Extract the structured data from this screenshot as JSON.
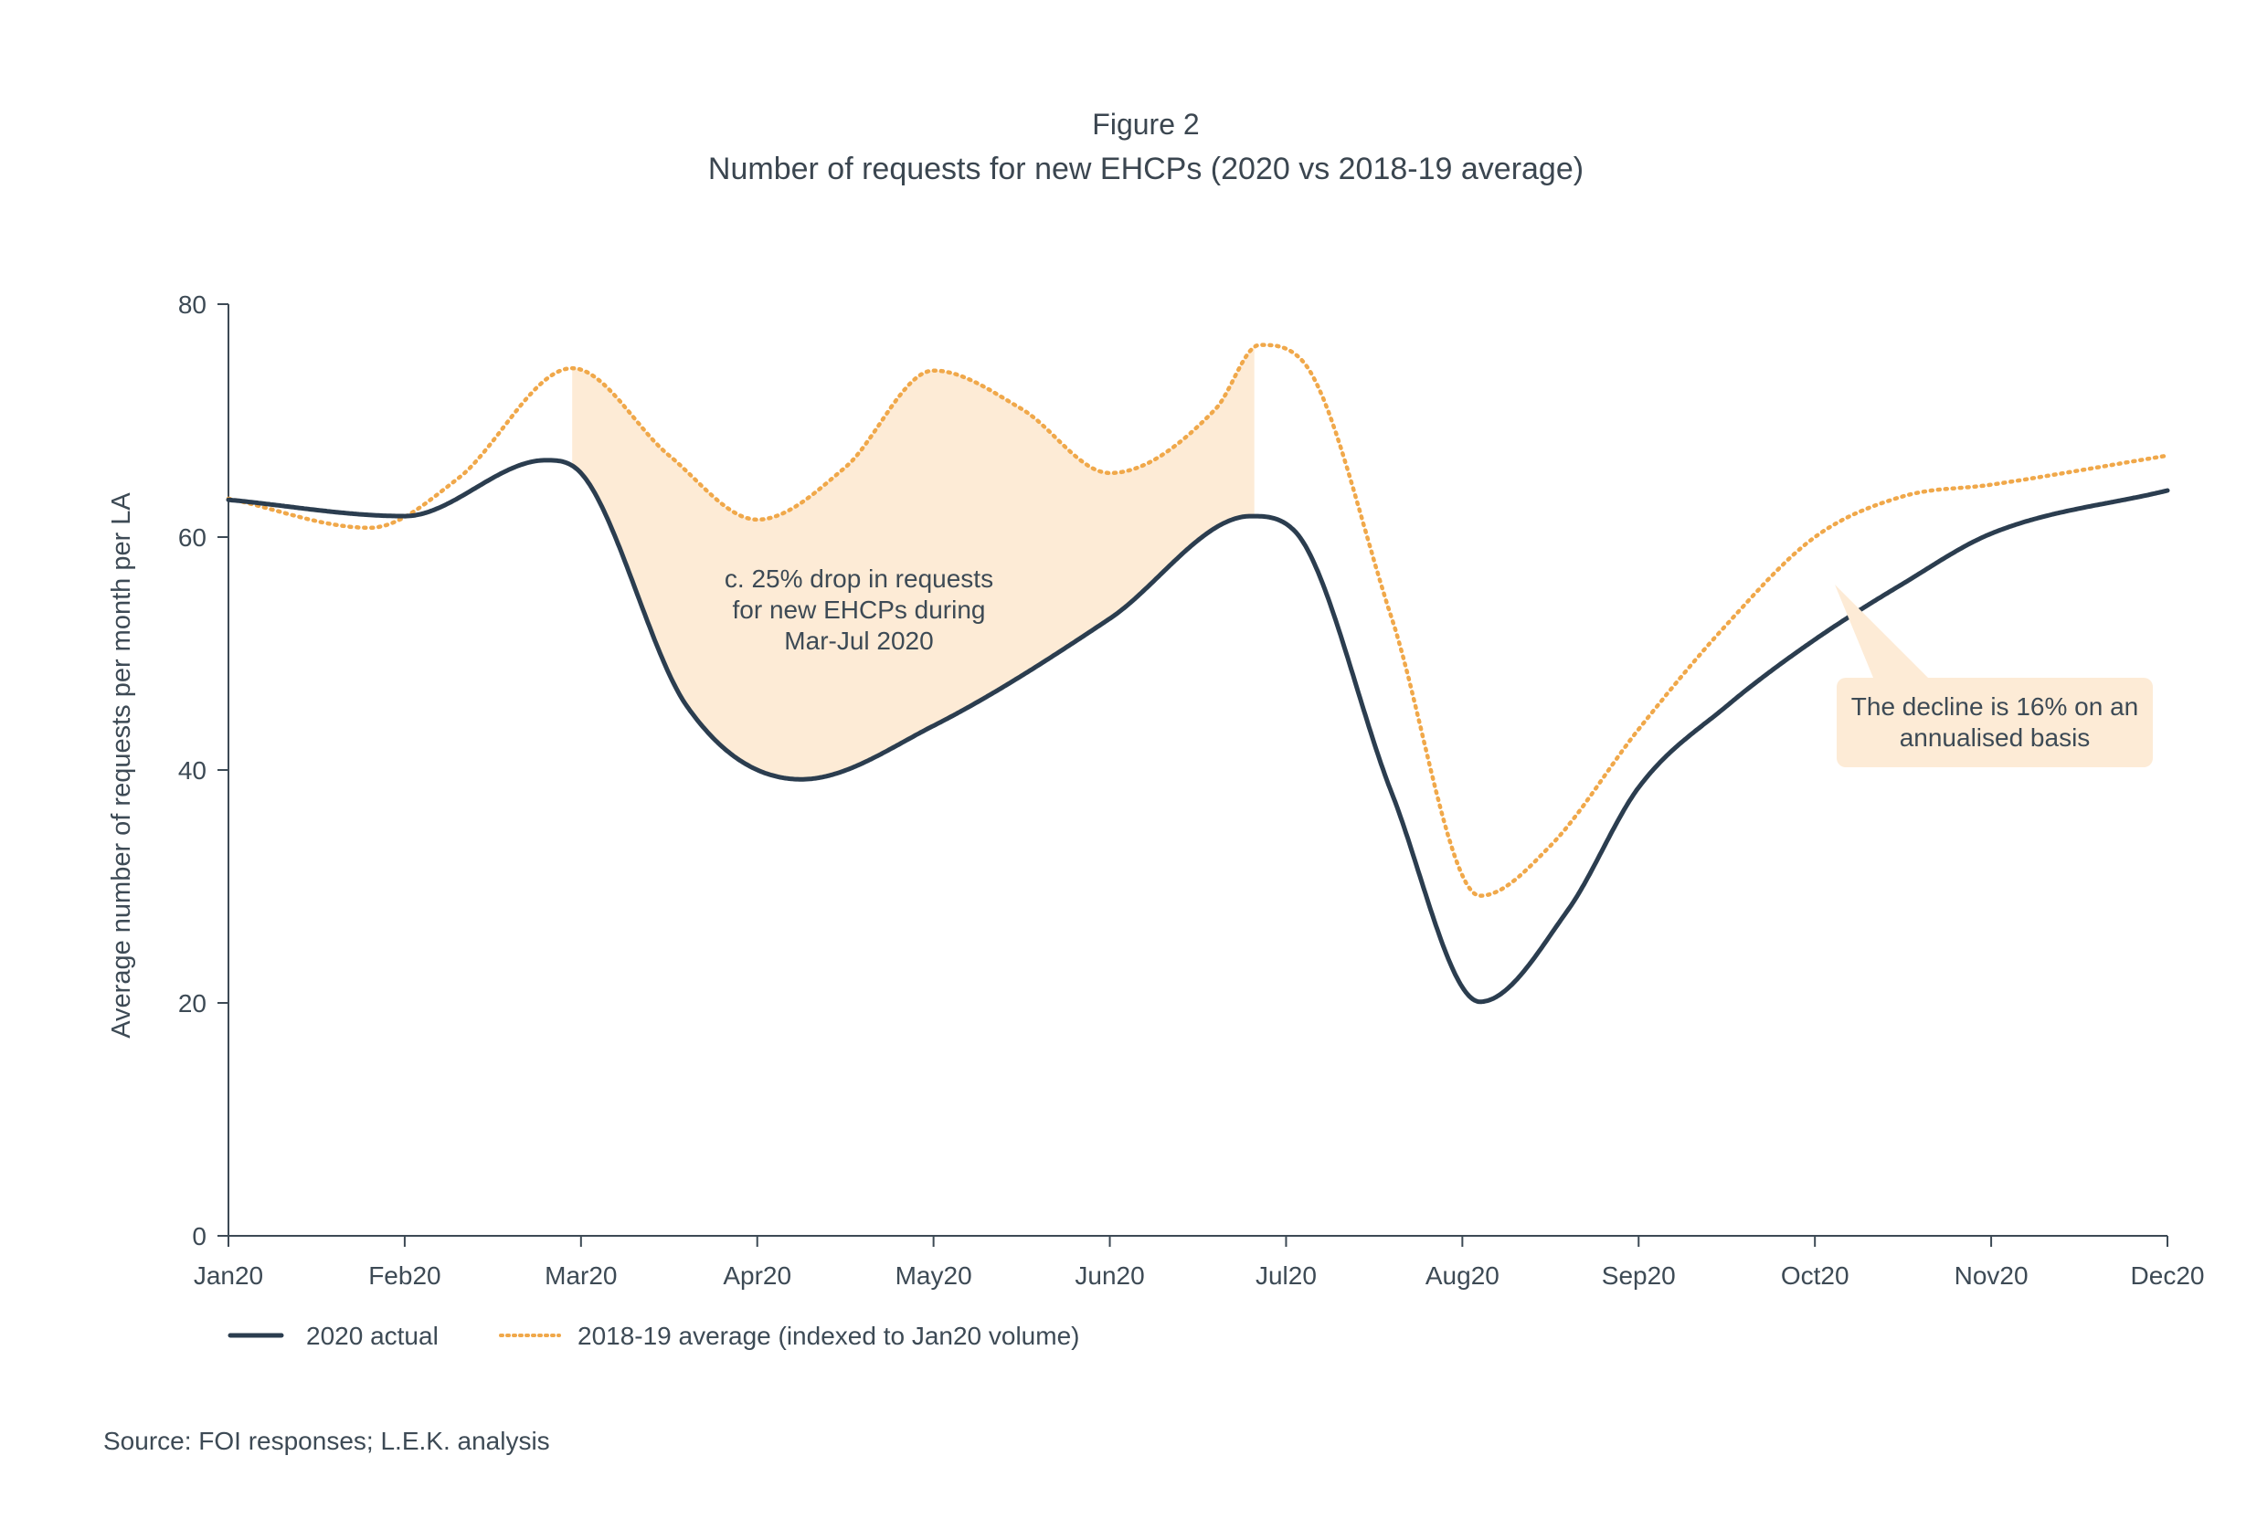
{
  "figure_label": "Figure 2",
  "source": "Source: FOI responses; L.E.K. analysis",
  "colors": {
    "actual": "#2b3d4f",
    "average": "#f0a84a",
    "shade": "#fdebd6",
    "axis": "#3d4a55"
  },
  "chart_data": {
    "type": "line",
    "title": "Number of requests for new EHCPs (2020 vs 2018-19 average)",
    "xlabel": "",
    "ylabel": "Average number of requests per month per LA",
    "categories": [
      "Jan20",
      "Feb20",
      "Mar20",
      "Apr20",
      "May20",
      "Jun20",
      "Jul20",
      "Aug20",
      "Sep20",
      "Oct20",
      "Nov20",
      "Dec20"
    ],
    "ylim": [
      0,
      80
    ],
    "yticks": [
      0,
      20,
      40,
      60,
      80
    ],
    "grid": false,
    "legend_position": "bottom-left",
    "series": [
      {
        "name": "2020 actual",
        "style": "solid",
        "points": [
          [
            0,
            63.2
          ],
          [
            1,
            61.8
          ],
          [
            1.8,
            66.6
          ],
          [
            2.0,
            65.5
          ],
          [
            2.6,
            45.5
          ],
          [
            3.25,
            39.2
          ],
          [
            4.0,
            43.8
          ],
          [
            5.0,
            53.0
          ],
          [
            5.8,
            61.8
          ],
          [
            6.05,
            60.5
          ],
          [
            6.6,
            38.0
          ],
          [
            7.1,
            20.1
          ],
          [
            7.6,
            28.0
          ],
          [
            8.0,
            38.5
          ],
          [
            8.5,
            45.5
          ],
          [
            9.0,
            51.2
          ],
          [
            9.5,
            56.0
          ],
          [
            10.0,
            60.3
          ],
          [
            11.0,
            64.0
          ]
        ]
      },
      {
        "name": "2018-19 average (indexed to Jan20 volume)",
        "style": "dotted",
        "points": [
          [
            0,
            63.3
          ],
          [
            0.8,
            60.8
          ],
          [
            1.3,
            65.0
          ],
          [
            1.95,
            74.5
          ],
          [
            2.5,
            67.0
          ],
          [
            3.0,
            61.5
          ],
          [
            3.5,
            66.0
          ],
          [
            4.0,
            74.3
          ],
          [
            4.5,
            71.0
          ],
          [
            5.0,
            65.5
          ],
          [
            5.6,
            71.0
          ],
          [
            5.85,
            76.5
          ],
          [
            6.1,
            75.0
          ],
          [
            6.6,
            53.0
          ],
          [
            7.1,
            29.2
          ],
          [
            7.5,
            33.5
          ],
          [
            8.0,
            43.5
          ],
          [
            8.5,
            52.5
          ],
          [
            9.0,
            60.0
          ],
          [
            9.5,
            63.5
          ],
          [
            10.0,
            64.5
          ],
          [
            11.0,
            67.0
          ]
        ]
      }
    ],
    "shaded_region": {
      "x_from": 1.95,
      "x_to": 5.82
    },
    "annotations": [
      {
        "lines": [
          "c. 25% drop in requests",
          "for new EHCPs during",
          "Mar-Jul 2020"
        ]
      },
      {
        "lines": [
          "The decline is 16% on an",
          "annualised basis"
        ]
      }
    ]
  }
}
